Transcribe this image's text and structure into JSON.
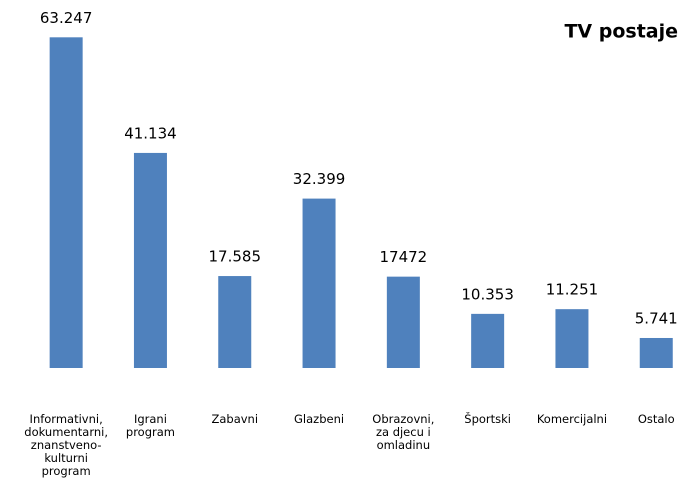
{
  "chart_data": {
    "type": "bar",
    "title": "TV postaje",
    "categories": [
      "Informativni,\ndokumentarni,\nznanstveno-\nkulturni\nprogram",
      "Igrani\nprogram",
      "Zabavni",
      "Glazbeni",
      "Obrazovni,\nza djecu i\nomladinu",
      "Športski",
      "Komercijalni",
      "Ostalo"
    ],
    "values": [
      63247,
      41134,
      17585,
      32399,
      17472,
      10353,
      11251,
      5741
    ],
    "value_labels": [
      "63.247",
      "41.134",
      "17.585",
      "32.399",
      "17472",
      "10.353",
      "11.251",
      "5.741"
    ],
    "color": "#4f81bd",
    "ylim": [
      0,
      70000
    ]
  }
}
